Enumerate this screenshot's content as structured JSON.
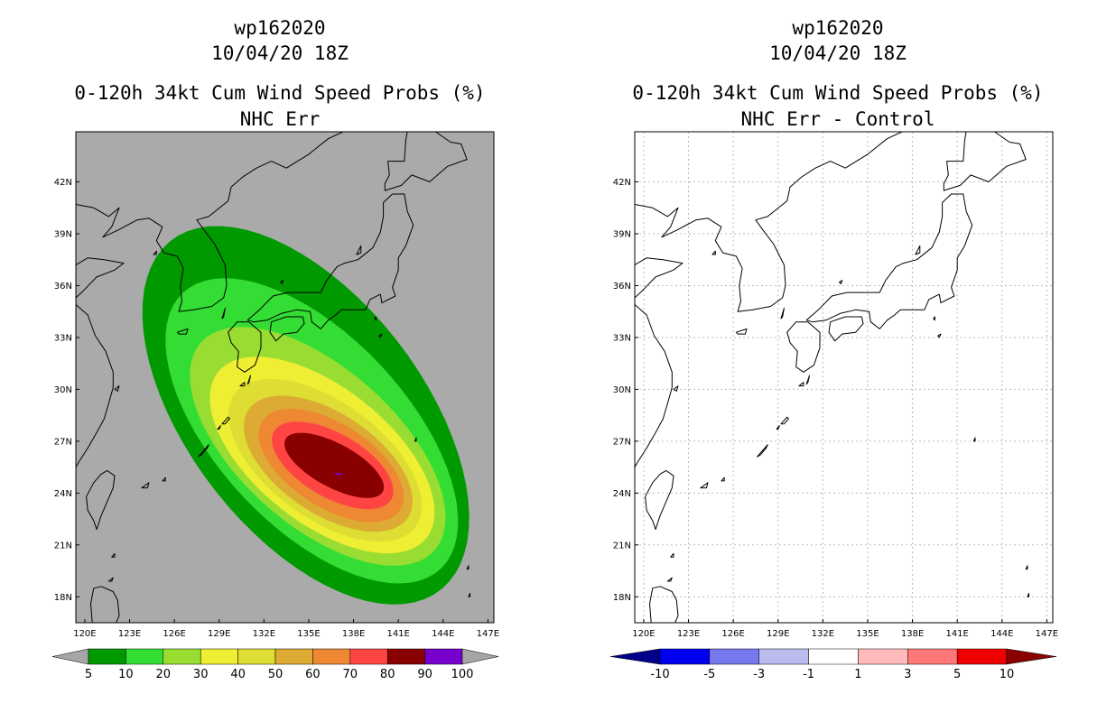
{
  "chart_data": [
    {
      "type": "heatmap",
      "storm_id": "wp162020",
      "datetime": "10/04/20 18Z",
      "title": "0-120h 34kt Cum Wind Speed Probs (%)",
      "subtitle": "NHC Err",
      "background": "#aaaaaa",
      "xlabel_ticks": [
        "120E",
        "123E",
        "126E",
        "129E",
        "132E",
        "135E",
        "138E",
        "141E",
        "144E",
        "147E"
      ],
      "ylabel_ticks": [
        "18N",
        "21N",
        "24N",
        "27N",
        "30N",
        "33N",
        "36N",
        "39N",
        "42N"
      ],
      "lon_range": [
        119.4,
        147.4
      ],
      "lat_range": [
        16.5,
        44.9
      ],
      "colorbar": {
        "labels": [
          "5",
          "10",
          "20",
          "30",
          "40",
          "50",
          "60",
          "70",
          "80",
          "90",
          "100"
        ],
        "colors": [
          "#a6a6a6",
          "#009900",
          "#33dd33",
          "#99dd33",
          "#eeee33",
          "#dddd33",
          "#ddaa33",
          "#ee8833",
          "#ff4444",
          "#880000",
          "#7700cc",
          "#a6a6a6"
        ]
      },
      "probability_contours": [
        {
          "level": 5,
          "color": "#009900",
          "center": [
            134.8,
            28.5
          ],
          "semi_major_deg": 13.6,
          "semi_minor_deg": 7.4,
          "rotation": 45
        },
        {
          "level": 10,
          "color": "#33dd33",
          "center": [
            135.2,
            27.6
          ],
          "semi_major_deg": 11.8,
          "semi_minor_deg": 5.9,
          "rotation": 40
        },
        {
          "level": 20,
          "color": "#99dd33",
          "center": [
            135.6,
            26.7
          ],
          "semi_major_deg": 9.9,
          "semi_minor_deg": 4.8,
          "rotation": 35
        },
        {
          "level": 30,
          "color": "#eeee33",
          "center": [
            135.9,
            26.2
          ],
          "semi_major_deg": 8.5,
          "semi_minor_deg": 4.1,
          "rotation": 32
        },
        {
          "level": 40,
          "color": "#dddd33",
          "center": [
            136.1,
            25.9
          ],
          "semi_major_deg": 7.2,
          "semi_minor_deg": 3.5,
          "rotation": 30
        },
        {
          "level": 50,
          "color": "#ddaa33",
          "center": [
            136.3,
            25.7
          ],
          "semi_major_deg": 6.2,
          "semi_minor_deg": 3.0,
          "rotation": 28
        },
        {
          "level": 60,
          "color": "#ee8833",
          "center": [
            136.5,
            25.6
          ],
          "semi_major_deg": 5.3,
          "semi_minor_deg": 2.5,
          "rotation": 27
        },
        {
          "level": 70,
          "color": "#ff4444",
          "center": [
            136.6,
            25.6
          ],
          "semi_major_deg": 4.4,
          "semi_minor_deg": 1.9,
          "rotation": 25
        },
        {
          "level": 80,
          "color": "#880000",
          "center": [
            136.7,
            25.6
          ],
          "semi_major_deg": 3.6,
          "semi_minor_deg": 1.3,
          "rotation": 24
        }
      ],
      "storm_marker": {
        "lon": 137.0,
        "lat": 25.1,
        "color": "#7700cc"
      }
    },
    {
      "type": "heatmap",
      "storm_id": "wp162020",
      "datetime": "10/04/20 18Z",
      "title": "0-120h 34kt Cum Wind Speed Probs (%)",
      "subtitle": "NHC Err - Control",
      "background": "#ffffff",
      "grid": true,
      "xlabel_ticks": [
        "120E",
        "123E",
        "126E",
        "129E",
        "132E",
        "135E",
        "138E",
        "141E",
        "144E",
        "147E"
      ],
      "ylabel_ticks": [
        "18N",
        "21N",
        "24N",
        "27N",
        "30N",
        "33N",
        "36N",
        "39N",
        "42N"
      ],
      "lon_range": [
        119.4,
        147.4
      ],
      "lat_range": [
        16.5,
        44.9
      ],
      "colorbar": {
        "labels": [
          "-10",
          "-5",
          "-3",
          "-1",
          "1",
          "3",
          "5",
          "10"
        ],
        "colors": [
          "#000088",
          "#0000ee",
          "#7777ee",
          "#bbbbee",
          "#ffffff",
          "#ffbbbb",
          "#ff7777",
          "#ee0000",
          "#880000"
        ]
      },
      "probability_contours": []
    }
  ]
}
